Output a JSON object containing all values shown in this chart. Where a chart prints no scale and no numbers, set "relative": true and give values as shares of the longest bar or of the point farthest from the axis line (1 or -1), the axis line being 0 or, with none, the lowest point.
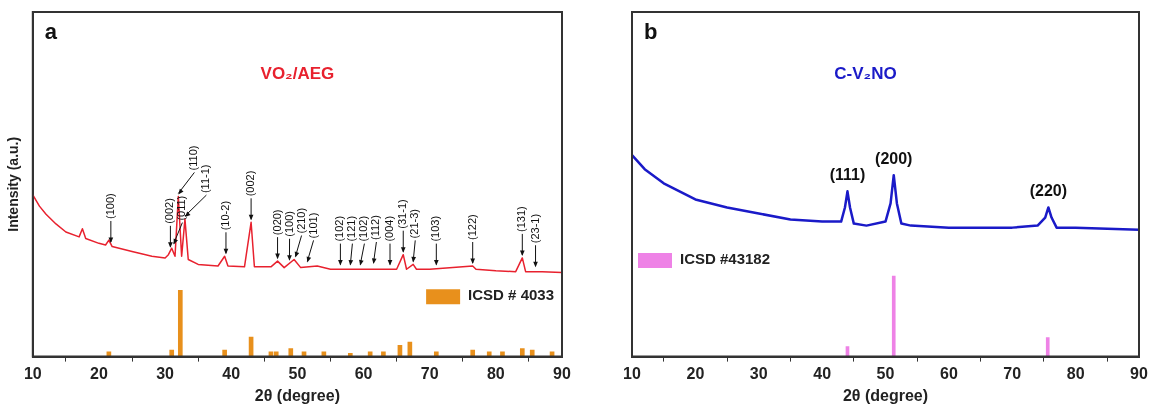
{
  "chart_data": [
    {
      "type": "line",
      "title": "VO₂/AEG",
      "xlabel": "2θ (degree)",
      "ylabel": "Intensity (a.u.)",
      "relative": true,
      "xlim": [
        10,
        90
      ],
      "xticks": [
        10,
        20,
        30,
        40,
        50,
        60,
        70,
        80,
        90
      ],
      "legend": "bottom right",
      "annotations": [
        "a",
        {
          "text": "(100)",
          "x": 21.8,
          "y": 0.69
        },
        {
          "text": "(002)",
          "x": 30.8,
          "y": 0.66
        },
        {
          "text": "(011)",
          "x": 31.3,
          "y": 0.68
        },
        {
          "text": "(110)",
          "x": 32,
          "y": 0.99
        },
        {
          "text": "(11-1)",
          "x": 33,
          "y": 0.85
        },
        {
          "text": "(10-2)",
          "x": 39.2,
          "y": 0.62
        },
        {
          "text": "(002)",
          "x": 43,
          "y": 0.83
        },
        {
          "text": "(020)",
          "x": 47,
          "y": 0.59
        },
        {
          "text": "(100)",
          "x": 48.8,
          "y": 0.58
        },
        {
          "text": "(210)",
          "x": 49.7,
          "y": 0.6
        },
        {
          "text": "(101)",
          "x": 51.5,
          "y": 0.57
        },
        {
          "text": "(102)",
          "x": 56.5,
          "y": 0.55
        },
        {
          "text": "(121)",
          "x": 58,
          "y": 0.55
        },
        {
          "text": "(102)",
          "x": 59.5,
          "y": 0.55
        },
        {
          "text": "(112)",
          "x": 61.5,
          "y": 0.56
        },
        {
          "text": "(004)",
          "x": 64,
          "y": 0.55
        },
        {
          "text": "(31-1)",
          "x": 66,
          "y": 0.63
        },
        {
          "text": "(21-3)",
          "x": 67.5,
          "y": 0.57
        },
        {
          "text": "(103)",
          "x": 71,
          "y": 0.55
        },
        {
          "text": "(122)",
          "x": 76.5,
          "y": 0.56
        },
        {
          "text": "(131)",
          "x": 84,
          "y": 0.61
        },
        {
          "text": "(23-1)",
          "x": 86,
          "y": 0.54
        }
      ],
      "series": [
        {
          "color": "#e8212e",
          "x": [
            10,
            11,
            12,
            13.5,
            15,
            17,
            17.5,
            18,
            20,
            21,
            21.5,
            22,
            25,
            28,
            30,
            30.5,
            31,
            31.5,
            32,
            32.5,
            33,
            33.5,
            35,
            38,
            39,
            39.5,
            42,
            43,
            43.5,
            46,
            47,
            48,
            49.5,
            50.5,
            53,
            55,
            60,
            65,
            66,
            66.5,
            67.5,
            68,
            70,
            76.5,
            77,
            80,
            83,
            84,
            84.5,
            87,
            90
          ],
          "values": [
            1.0,
            0.93,
            0.88,
            0.82,
            0.77,
            0.74,
            0.79,
            0.73,
            0.7,
            0.69,
            0.72,
            0.68,
            0.65,
            0.62,
            0.61,
            0.63,
            0.67,
            0.62,
            0.99,
            0.62,
            0.85,
            0.6,
            0.57,
            0.56,
            0.62,
            0.56,
            0.555,
            0.83,
            0.555,
            0.555,
            0.59,
            0.55,
            0.6,
            0.55,
            0.56,
            0.54,
            0.54,
            0.54,
            0.63,
            0.54,
            0.57,
            0.54,
            0.54,
            0.56,
            0.54,
            0.53,
            0.525,
            0.61,
            0.525,
            0.525,
            0.52
          ]
        },
        {
          "type": "bar",
          "name": "ICSD # 4033",
          "color": "#e8901c",
          "x": [
            21.5,
            31,
            32.3,
            39,
            43,
            46,
            46.8,
            49,
            51,
            54,
            58,
            61,
            63,
            65.5,
            67,
            71,
            76.5,
            79,
            81,
            84,
            85.5,
            88.5
          ],
          "values": [
            0.03,
            0.04,
            0.41,
            0.04,
            0.12,
            0.03,
            0.03,
            0.05,
            0.03,
            0.03,
            0.02,
            0.03,
            0.03,
            0.07,
            0.09,
            0.03,
            0.04,
            0.03,
            0.03,
            0.05,
            0.04,
            0.03
          ]
        }
      ]
    },
    {
      "type": "line",
      "title": "C-V₂NO",
      "xlabel": "2θ (degree)",
      "relative": true,
      "xlim": [
        10,
        90
      ],
      "xticks": [
        10,
        20,
        30,
        40,
        50,
        60,
        70,
        80,
        90
      ],
      "legend": "left",
      "annotations": [
        "b",
        {
          "text": "(111)",
          "x": 44,
          "y": 0.82
        },
        {
          "text": "(200)",
          "x": 51.3,
          "y": 0.9
        },
        {
          "text": "(220)",
          "x": 75.7,
          "y": 0.74
        }
      ],
      "series": [
        {
          "color": "#1a1ac8",
          "x": [
            10,
            12,
            15,
            20,
            25,
            30,
            35,
            40,
            43,
            43.6,
            44,
            44.4,
            45,
            47,
            50,
            50.8,
            51.3,
            51.8,
            52.5,
            54,
            60,
            70,
            74,
            75.2,
            75.7,
            76.2,
            77,
            80,
            90
          ],
          "values": [
            1.0,
            0.93,
            0.86,
            0.78,
            0.74,
            0.71,
            0.68,
            0.67,
            0.67,
            0.74,
            0.82,
            0.74,
            0.66,
            0.65,
            0.67,
            0.76,
            0.9,
            0.76,
            0.66,
            0.65,
            0.64,
            0.64,
            0.65,
            0.69,
            0.74,
            0.69,
            0.64,
            0.64,
            0.63
          ]
        },
        {
          "type": "bar",
          "name": "ICSD #43182",
          "color": "#ee82e6",
          "x": [
            44,
            51.3,
            75.6
          ],
          "values": [
            0.05,
            0.4,
            0.095
          ]
        }
      ]
    }
  ]
}
